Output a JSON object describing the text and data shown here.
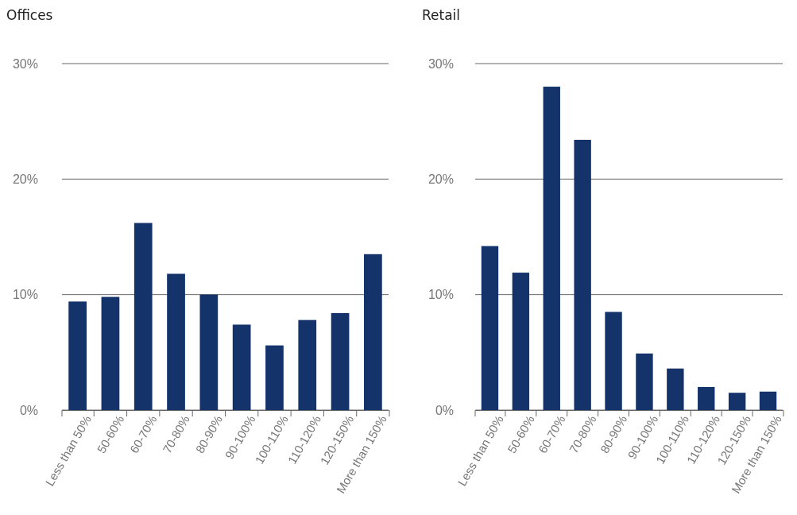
{
  "chart_data": [
    {
      "type": "bar",
      "title": "Offices",
      "categories": [
        "Less than 50%",
        "50-60%",
        "60-70%",
        "70-80%",
        "80-90%",
        "90-100%",
        "100-110%",
        "110-120%",
        "120-150%",
        "More than 150%"
      ],
      "values": [
        9.4,
        9.8,
        16.2,
        11.8,
        10.0,
        7.4,
        5.6,
        7.8,
        8.4,
        13.5
      ],
      "color": "#14336b",
      "ylim": [
        0,
        30
      ],
      "yticks": [
        {
          "value": 0,
          "label": "0%"
        },
        {
          "value": 10,
          "label": "10%"
        },
        {
          "value": 20,
          "label": "20%"
        },
        {
          "value": 30,
          "label": "30%"
        }
      ],
      "grid": "y"
    },
    {
      "type": "bar",
      "title": "Retail",
      "categories": [
        "Less than 50%",
        "50-60%",
        "60-70%",
        "70-80%",
        "80-90%",
        "90-100%",
        "100-110%",
        "110-120%",
        "120-150%",
        "More than 150%"
      ],
      "values": [
        14.2,
        11.9,
        28.0,
        23.4,
        8.5,
        4.9,
        3.6,
        2.0,
        1.5,
        1.6
      ],
      "color": "#14336b",
      "ylim": [
        0,
        30
      ],
      "yticks": [
        {
          "value": 0,
          "label": "0%"
        },
        {
          "value": 10,
          "label": "10%"
        },
        {
          "value": 20,
          "label": "20%"
        },
        {
          "value": 30,
          "label": "30%"
        }
      ],
      "grid": "y"
    }
  ]
}
